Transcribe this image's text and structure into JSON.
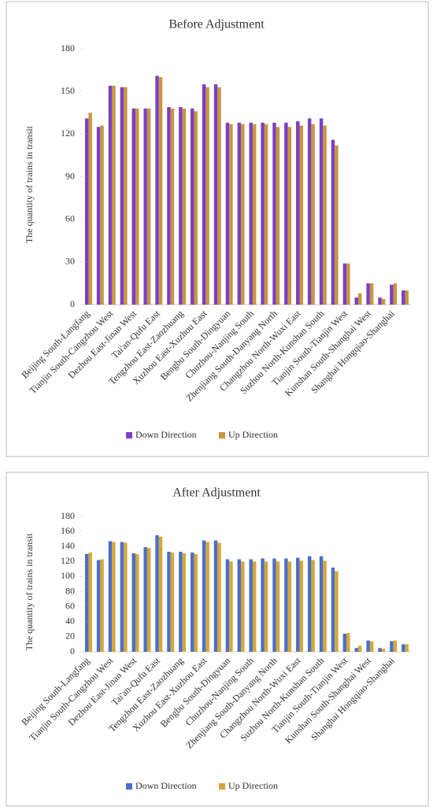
{
  "chart_data": [
    {
      "type": "bar",
      "title": "Before Adjustment",
      "y_label": "The quantity of trains in transit",
      "categories": [
        "Beijing South-Langfang",
        null,
        "Tianjin South-Cangzhou West",
        null,
        "Dezhou East-Jinan West",
        null,
        "Tai'an-Qufu East",
        null,
        "Tengzhou East-Zaozhuang",
        null,
        "Xuzhou East-Xuzhou East",
        null,
        "Bengbu South-Dingyuan",
        null,
        "Chuzhou-Nanjing South",
        null,
        "Zhenjiang South-Danyang North",
        null,
        "Changzhou North-Wuxi East",
        null,
        "Suzhou North-Kunshan South",
        null,
        "Tianjin South-Tianjin West",
        null,
        "Kunshan South-Shanghai West",
        null,
        "Shanghai Hongqiao-Shanghai",
        null
      ],
      "series": [
        {
          "name": "Down  Direction",
          "color": "#7b3fc4",
          "values": [
            131,
            125,
            154,
            153,
            138,
            138,
            161,
            139,
            139,
            138,
            155,
            155,
            128,
            128,
            128,
            128,
            128,
            128,
            129,
            131,
            131,
            116,
            29,
            5,
            15,
            5,
            14,
            10
          ]
        },
        {
          "name": "Up  Direction",
          "color": "#c8963e",
          "values": [
            135,
            126,
            154,
            153,
            138,
            138,
            160,
            138,
            138,
            136,
            153,
            153,
            127,
            127,
            127,
            127,
            125,
            125,
            126,
            127,
            126,
            112,
            29,
            8,
            15,
            4,
            15,
            10
          ]
        }
      ],
      "ylim": [
        0,
        180
      ],
      "yticks": [
        0,
        30,
        60,
        90,
        120,
        150,
        180
      ],
      "legend": "bottom"
    },
    {
      "type": "bar",
      "title": "After Adjustment",
      "y_label": "The quantity of trains in transit",
      "categories": [
        "Beijing South-Langfang",
        null,
        "Tianjin South-Cangzhou West",
        null,
        "Dezhou East-Jinan West",
        null,
        "Tai'an-Qufu East",
        null,
        "Tengzhou East-Zaozhuang",
        null,
        "Xuzhou East-Xuzhou East",
        null,
        "Bengbu South-Dingyuan",
        null,
        "Chuzhou-Nanjing South",
        null,
        "Zhenjiang South-Danyang North",
        null,
        "Changzhou North-Wuxi East",
        null,
        "Suzhou North-Kunshan South",
        null,
        "Tianjin South-Tianjin West",
        null,
        "Kunshan South-Shanghai West",
        null,
        "Shanghai Hongqiao-Shanghai",
        null
      ],
      "series": [
        {
          "name": "Down  Direction",
          "color": "#4a6fc8",
          "values": [
            130,
            122,
            147,
            146,
            131,
            139,
            155,
            133,
            133,
            132,
            148,
            148,
            123,
            123,
            123,
            124,
            124,
            124,
            125,
            127,
            127,
            112,
            24,
            5,
            15,
            5,
            14,
            10
          ]
        },
        {
          "name": "Up  Direction",
          "color": "#d4a73a",
          "values": [
            132,
            123,
            146,
            145,
            130,
            138,
            153,
            132,
            131,
            130,
            146,
            145,
            120,
            120,
            120,
            120,
            120,
            120,
            121,
            122,
            121,
            107,
            25,
            8,
            14,
            4,
            15,
            10
          ]
        }
      ],
      "ylim": [
        0,
        180
      ],
      "yticks": [
        0,
        20,
        40,
        60,
        80,
        100,
        120,
        140,
        160,
        180
      ],
      "legend": "bottom"
    }
  ]
}
